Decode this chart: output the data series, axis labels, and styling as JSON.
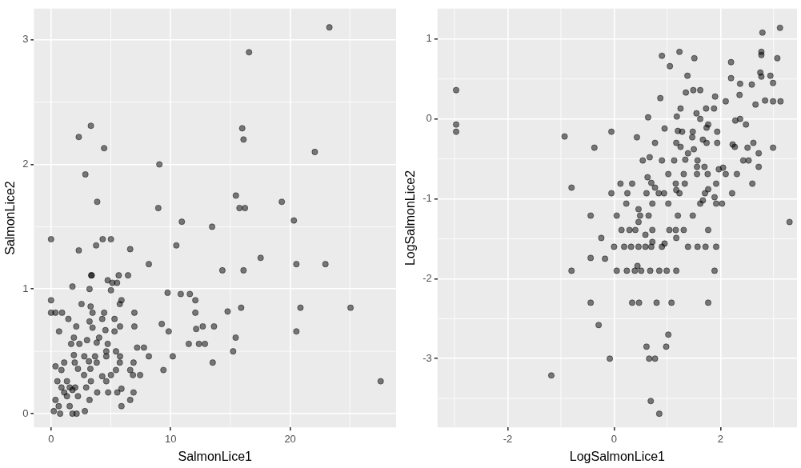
{
  "chart_data": [
    {
      "type": "scatter",
      "xlabel": "SalmonLice1",
      "ylabel": "SalmonLice2",
      "xlim": [
        -1.43,
        28.86
      ],
      "ylim": [
        -0.11,
        3.25
      ],
      "xticks": [
        0,
        10,
        20
      ],
      "yticks": [
        0,
        1,
        2,
        3
      ],
      "grid": true,
      "marker": "circle",
      "series": [
        {
          "color": "#000000",
          "x": [
            3.33,
            2.32,
            4.44,
            9.06,
            2.87,
            3.86,
            8.97,
            10.94,
            13.47,
            0,
            4.32,
            5.01,
            3.77,
            2.32,
            6.62,
            10.48,
            8.18,
            3.36,
            3.4,
            4.74,
            5.13,
            5.52,
            5.66,
            6.44,
            1.79,
            3.22,
            5.01,
            9.75,
            10.85,
            11.61,
            12.07,
            0,
            5.89,
            5.75,
            2.55,
            3.31,
            0,
            0.37,
            0.92,
            3.47,
            4.44,
            6.97,
            12.07,
            1.45,
            3.22,
            4.28,
            5.31,
            3.47,
            2.11,
            5.77,
            6.97,
            9.26,
            9.84,
            12.69,
            12.14,
            13.63,
            0.67,
            4.55,
            5.31,
            1.91,
            4.02,
            3.01,
            3.82,
            1.68,
            2.37,
            4.74,
            7.2,
            7.77,
            11.52,
            12.37,
            12.87,
            4.62,
            5.43,
            1.91,
            2.78,
            3.68,
            4.62,
            5.77,
            8.18,
            10.18,
            13.52,
            1.1,
            1.98,
            3.17,
            3.82,
            5.75,
            6.9,
            0.37,
            0.87,
            2.25,
            3.29,
            2.76,
            4.28,
            5.01,
            5.43,
            6.62,
            6.85,
            7.45,
            9.4,
            4.62,
            0.53,
            1.33,
            3.33,
            0.87,
            1.56,
            2.02,
            2.94,
            3.86,
            4.78,
            5.54,
            5.89,
            6.9,
            6.62,
            0.37,
            1.33,
            2.25,
            3.22,
            5.89,
            0.23,
            0.76,
            0.64,
            1.56,
            1.79,
            2.14,
            2.83,
            1.1,
            1.79,
            23.28,
            16.56,
            15.99,
            16.1,
            22.06,
            15.46,
            15.76,
            16.22,
            19.3,
            20.31,
            17.53,
            14.33,
            16.1,
            20.52,
            22.95,
            14.77,
            15.9,
            20.86,
            25.05,
            15.44,
            20.52,
            15.23,
            27.57
          ],
          "values": [
            2.31,
            2.22,
            2.13,
            2.0,
            1.92,
            1.7,
            1.65,
            1.54,
            1.5,
            1.4,
            1.4,
            1.4,
            1.35,
            1.31,
            1.32,
            1.35,
            1.2,
            1.11,
            1.11,
            1.07,
            1.05,
            1.05,
            1.11,
            1.11,
            1.02,
            1.0,
            0.99,
            0.97,
            0.96,
            0.96,
            0.91,
            0.91,
            0.91,
            0.88,
            0.88,
            0.86,
            0.81,
            0.81,
            0.81,
            0.81,
            0.81,
            0.81,
            0.81,
            0.76,
            0.74,
            0.76,
            0.76,
            0.69,
            0.7,
            0.7,
            0.7,
            0.72,
            0.66,
            0.7,
            0.68,
            0.7,
            0.66,
            0.67,
            0.66,
            0.61,
            0.61,
            0.59,
            0.57,
            0.56,
            0.56,
            0.56,
            0.53,
            0.53,
            0.56,
            0.56,
            0.56,
            0.5,
            0.5,
            0.47,
            0.46,
            0.46,
            0.46,
            0.46,
            0.46,
            0.46,
            0.41,
            0.41,
            0.41,
            0.42,
            0.41,
            0.41,
            0.41,
            0.38,
            0.35,
            0.36,
            0.36,
            0.31,
            0.3,
            0.31,
            0.35,
            0.35,
            0.31,
            0.31,
            0.35,
            0.26,
            0.26,
            0.26,
            0.26,
            0.21,
            0.21,
            0.21,
            0.21,
            0.17,
            0.17,
            0.17,
            0.2,
            0.17,
            0.11,
            0.11,
            0.14,
            0.14,
            0.11,
            0.06,
            0.02,
            0.0,
            0.06,
            0.06,
            0.0,
            0.0,
            0.02,
            0.17,
            0.19,
            3.1,
            2.9,
            2.29,
            2.2,
            2.1,
            1.75,
            1.65,
            1.65,
            1.7,
            1.55,
            1.25,
            1.15,
            1.15,
            1.2,
            1.2,
            0.82,
            0.85,
            0.85,
            0.85,
            0.61,
            0.66,
            0.5,
            0.26
          ]
        }
      ]
    },
    {
      "type": "scatter",
      "xlabel": "LogSalmonLice1",
      "ylabel": "LogSalmonLice2",
      "xlim": [
        -3.32,
        3.44
      ],
      "ylim": [
        -3.86,
        1.38
      ],
      "xticks": [
        -2,
        0,
        2
      ],
      "yticks": [
        -3,
        -2,
        -1,
        0,
        1
      ],
      "grid": true,
      "marker": "circle",
      "series": [
        {
          "color": "#000000",
          "x": [
            -2.97,
            -2.97,
            -2.97,
            -0.93,
            -0.37,
            -0.8,
            -0.44,
            -0.24,
            -0.44,
            -0.17,
            -0.8,
            -0.44,
            -0.29,
            -1.18,
            3.12,
            2.79,
            0.9,
            1.23,
            1.51,
            1.05,
            1.38,
            2.77,
            2.77,
            2.2,
            3.07,
            2.75,
            2.77,
            2.94,
            2.2,
            2.37,
            2.59,
            2.99,
            1.35,
            1.49,
            1.62,
            0.87,
            1.9,
            2.1,
            2.36,
            2.66,
            2.84,
            2.99,
            3.13,
            1.25,
            1.18,
            1.73,
            1.88,
            1.55,
            1.62,
            0.64,
            2.28,
            2.37,
            2.48,
            1.77,
            -0.05,
            0.43,
            0.95,
            1.2,
            1.28,
            1.48,
            1.74,
            1.94,
            1.47,
            1.67,
            1.74,
            0.77,
            1.17,
            1.25,
            1.5,
            1.94,
            2.23,
            2.27,
            2.51,
            2.62,
            2.99,
            2.72,
            1.39,
            1.34,
            0.54,
            0.67,
            0.9,
            1.13,
            1.57,
            2.43,
            2.53,
            1.56,
            1.7,
            1.97,
            2.05,
            2.72,
            1.02,
            1.31,
            1.56,
            1.76,
            2.1,
            2.31,
            0.63,
            0.7,
            0.12,
            0.34,
            1.16,
            1.33,
            1.92,
            2.6,
            0.77,
            -0.05,
            0.25,
            0.61,
            0.84,
            0.94,
            1.17,
            1.23,
            1.71,
            1.77,
            2.22,
            1.89,
            1.67,
            1.62,
            0.23,
            0.72,
            1.02,
            1.92,
            2.03,
            0.46,
            0.05,
            0.49,
            0.65,
            1.2,
            1.48,
            0.46,
            3.3,
            0.14,
            0.29,
            0.4,
            0.72,
            1.04,
            1.16,
            1.31,
            1.77,
            0.59,
            1.17,
            0.95,
            0.72,
            0,
            0.19,
            0.32,
            0.46,
            0.59,
            0.7,
            0.9,
            1.39,
            1.57,
            1.72,
            1.92,
            0.44,
            0.05,
            0.24,
            0.39,
            0.51,
            0.68,
            0.85,
            0.99,
            1.17,
            1.89,
            0.34,
            0.47,
            0.8,
            1.08,
            1.77,
            1.02,
            0.61,
            0.98,
            -0.08,
            0.66,
            0.77,
            0.69,
            0.85
          ],
          "values": [
            0.36,
            -0.07,
            -0.16,
            -0.22,
            -0.36,
            -0.86,
            -1.21,
            -1.49,
            -1.74,
            -1.75,
            -1.9,
            -2.3,
            -2.58,
            -3.21,
            1.14,
            1.08,
            0.79,
            0.84,
            0.76,
            0.66,
            0.54,
            0.84,
            0.8,
            0.71,
            0.76,
            0.58,
            0.53,
            0.54,
            0.51,
            0.44,
            0.43,
            0.45,
            0.33,
            0.36,
            0.36,
            0.26,
            0.28,
            0.22,
            0.3,
            0.18,
            0.23,
            0.22,
            0.22,
            0.13,
            0.03,
            0.13,
            0.13,
            0.07,
            0.0,
            0.02,
            -0.02,
            0.0,
            -0.07,
            -0.07,
            -0.16,
            -0.23,
            -0.12,
            -0.15,
            -0.16,
            -0.16,
            -0.11,
            -0.16,
            -0.23,
            -0.26,
            -0.3,
            -0.3,
            -0.3,
            -0.35,
            -0.38,
            -0.3,
            -0.32,
            -0.35,
            -0.36,
            -0.3,
            -0.36,
            -0.43,
            -0.43,
            -0.51,
            -0.52,
            -0.48,
            -0.52,
            -0.52,
            -0.52,
            -0.52,
            -0.52,
            -0.6,
            -0.6,
            -0.63,
            -0.61,
            -0.6,
            -0.69,
            -0.69,
            -0.69,
            -0.69,
            -0.69,
            -0.69,
            -0.73,
            -0.8,
            -0.81,
            -0.81,
            -0.81,
            -0.81,
            -0.81,
            -0.81,
            -0.86,
            -0.93,
            -0.93,
            -0.93,
            -0.93,
            -0.93,
            -0.89,
            -0.93,
            -0.93,
            -0.88,
            -0.93,
            -0.98,
            -1.02,
            -1.06,
            -1.06,
            -1.06,
            -1.06,
            -1.06,
            -1.06,
            -1.13,
            -1.21,
            -1.21,
            -1.21,
            -1.21,
            -1.21,
            -1.29,
            -1.29,
            -1.39,
            -1.39,
            -1.39,
            -1.39,
            -1.39,
            -1.39,
            -1.39,
            -1.39,
            -1.45,
            -1.49,
            -1.56,
            -1.54,
            -1.6,
            -1.6,
            -1.6,
            -1.6,
            -1.6,
            -1.6,
            -1.6,
            -1.6,
            -1.6,
            -1.6,
            -1.6,
            -1.84,
            -1.9,
            -1.9,
            -1.9,
            -1.9,
            -1.9,
            -1.9,
            -1.9,
            -1.9,
            -1.9,
            -2.3,
            -2.3,
            -2.3,
            -2.3,
            -2.3,
            -2.7,
            -2.85,
            -2.85,
            -3.0,
            -3.0,
            -3.0,
            -3.53,
            -3.69
          ]
        }
      ]
    }
  ]
}
